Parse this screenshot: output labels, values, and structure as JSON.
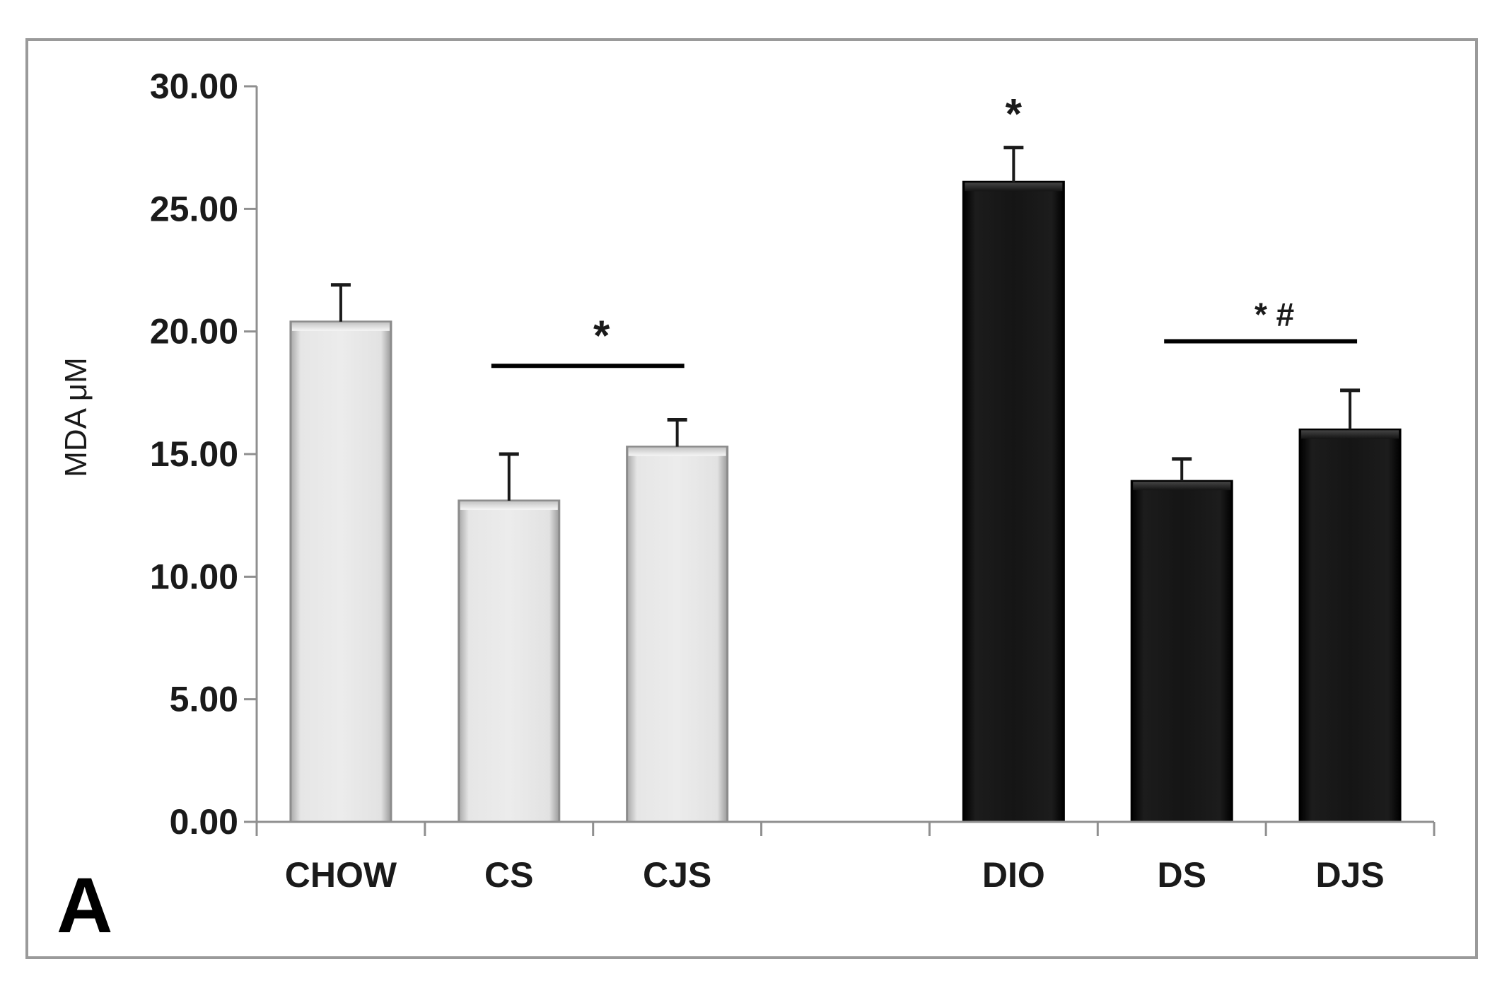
{
  "chart_data": {
    "type": "bar",
    "panel_label": "A",
    "ylabel": "MDA μM",
    "xlabel": "",
    "ylim": [
      0,
      30
    ],
    "yticks": [
      "0.00",
      "5.00",
      "10.00",
      "15.00",
      "20.00",
      "25.00",
      "30.00"
    ],
    "ytick_values": [
      0,
      5,
      10,
      15,
      20,
      25,
      30
    ],
    "grid": false,
    "legend": "none",
    "categories": [
      "CHOW",
      "CS",
      "CJS",
      "",
      "DIO",
      "DS",
      "DJS"
    ],
    "values": [
      20.4,
      13.1,
      15.3,
      null,
      26.1,
      13.9,
      16.0
    ],
    "errors": [
      1.5,
      1.9,
      1.1,
      null,
      1.4,
      0.9,
      1.6
    ],
    "colors": [
      "#e0e0e0",
      "#e0e0e0",
      "#e0e0e0",
      null,
      "#111111",
      "#111111",
      "#111111"
    ],
    "annotations": [
      {
        "text": "*",
        "x_from": "CS",
        "x_to": "CJS",
        "y": 18.6,
        "bar": true
      },
      {
        "text": "*",
        "x_from": "DIO",
        "x_to": "DIO",
        "y": 29.0,
        "bar": false
      },
      {
        "text": "* #",
        "x_from": "DS",
        "x_to": "DJS",
        "y": 19.6,
        "bar": true
      }
    ]
  }
}
